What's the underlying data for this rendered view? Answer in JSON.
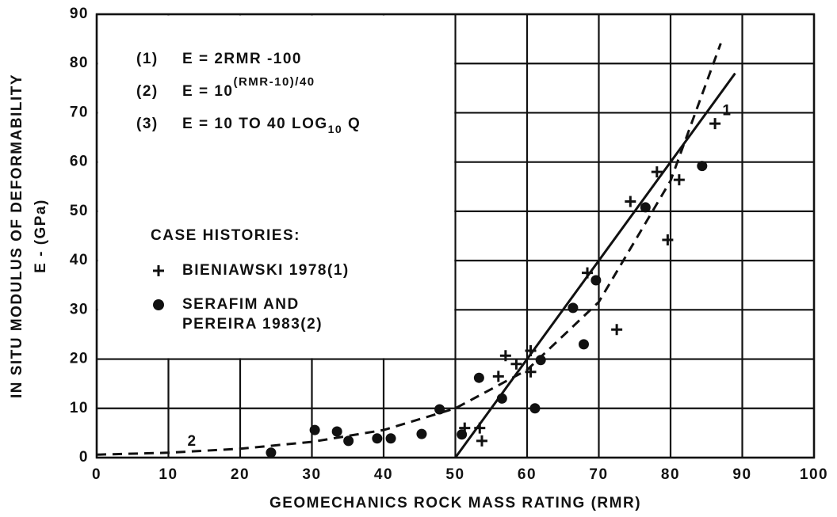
{
  "chart_data": {
    "type": "line",
    "xlabel": "GEOMECHANICS ROCK MASS RATING (RMR)",
    "ylabel": [
      "IN SITU MODULUS OF DEFORMABILITY",
      "E - (GPa)"
    ],
    "xlim": [
      0,
      100
    ],
    "xticks": [
      0,
      10,
      20,
      30,
      40,
      50,
      60,
      70,
      80,
      90,
      100
    ],
    "ylim": [
      0,
      90
    ],
    "yticks": [
      0,
      10,
      20,
      30,
      40,
      50,
      60,
      70,
      80,
      90
    ],
    "grid": true,
    "equations": [
      {
        "num": "(1)",
        "text": "E = 2RMR -100"
      },
      {
        "num": "(2)",
        "text": "E = 10",
        "sup": "(RMR-10)/40"
      },
      {
        "num": "(3)",
        "text": "E = 10 TO 40 LOG",
        "sub": "10",
        "tail": " Q"
      }
    ],
    "legend_title": "CASE HISTORIES:",
    "curves": [
      {
        "label": "1",
        "color": "#111",
        "dashed": false,
        "x": [
          50,
          89
        ],
        "y": [
          0,
          78
        ]
      },
      {
        "label": "2",
        "color": "#111",
        "dashed": true,
        "x": [
          0,
          10,
          20,
          30,
          40,
          50,
          60,
          70,
          80,
          87
        ],
        "y": [
          0.6,
          1,
          1.8,
          3.2,
          5.6,
          10,
          17.8,
          31.6,
          56.2,
          84.1
        ]
      }
    ],
    "series": [
      {
        "name": [
          "BIENIAWSKI 1978(1)"
        ],
        "marker": "plus",
        "color": "#111",
        "x": [
          51.3,
          53.7,
          53.4,
          56,
          57,
          58.5,
          60.5,
          60.5,
          68.4,
          72.5,
          74.4,
          78.1,
          81.2,
          86.2,
          79.6
        ],
        "y": [
          6,
          3.4,
          6,
          16.5,
          20.7,
          19,
          21.7,
          17.4,
          37.5,
          26,
          52,
          58,
          56.4,
          67.8,
          44.2
        ]
      },
      {
        "name": [
          "SERAFIM AND",
          "PEREIRA 1983(2)"
        ],
        "marker": "dot",
        "color": "#111",
        "x": [
          24.3,
          30.4,
          33.5,
          35.1,
          39.1,
          41,
          45.3,
          47.8,
          50.9,
          53.3,
          56.5,
          61.1,
          61.9,
          66.4,
          67.9,
          69.6,
          76.5,
          84.4
        ],
        "y": [
          1,
          5.6,
          5.3,
          3.4,
          3.9,
          3.9,
          4.8,
          9.8,
          4.7,
          16.2,
          12,
          10,
          19.8,
          30.4,
          23,
          36,
          50.8,
          59.2
        ]
      }
    ]
  }
}
